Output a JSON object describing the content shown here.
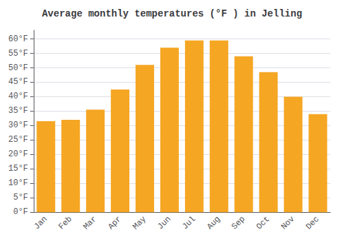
{
  "chart_data": {
    "type": "bar",
    "title": "Average monthly temperatures (°F ) in Jelling",
    "categories": [
      "Jan",
      "Feb",
      "Mar",
      "Apr",
      "May",
      "Jun",
      "Jul",
      "Aug",
      "Sep",
      "Oct",
      "Nov",
      "Dec"
    ],
    "values": [
      31.5,
      32.0,
      35.5,
      42.5,
      51.0,
      57.0,
      59.5,
      59.5,
      54.0,
      48.5,
      40.0,
      34.0
    ],
    "color": "#F5A623",
    "ylim": [
      0,
      63
    ],
    "yticks": [
      {
        "value": 0,
        "label": "0°F"
      },
      {
        "value": 5,
        "label": "5°F"
      },
      {
        "value": 10,
        "label": "10°F"
      },
      {
        "value": 15,
        "label": "15°F"
      },
      {
        "value": 20,
        "label": "20°F"
      },
      {
        "value": 25,
        "label": "25°F"
      },
      {
        "value": 30,
        "label": "30°F"
      },
      {
        "value": 35,
        "label": "35°F"
      },
      {
        "value": 40,
        "label": "40°F"
      },
      {
        "value": 45,
        "label": "45°F"
      },
      {
        "value": 50,
        "label": "50°F"
      },
      {
        "value": 55,
        "label": "55°F"
      },
      {
        "value": 60,
        "label": "60°F"
      }
    ],
    "grid": true
  }
}
